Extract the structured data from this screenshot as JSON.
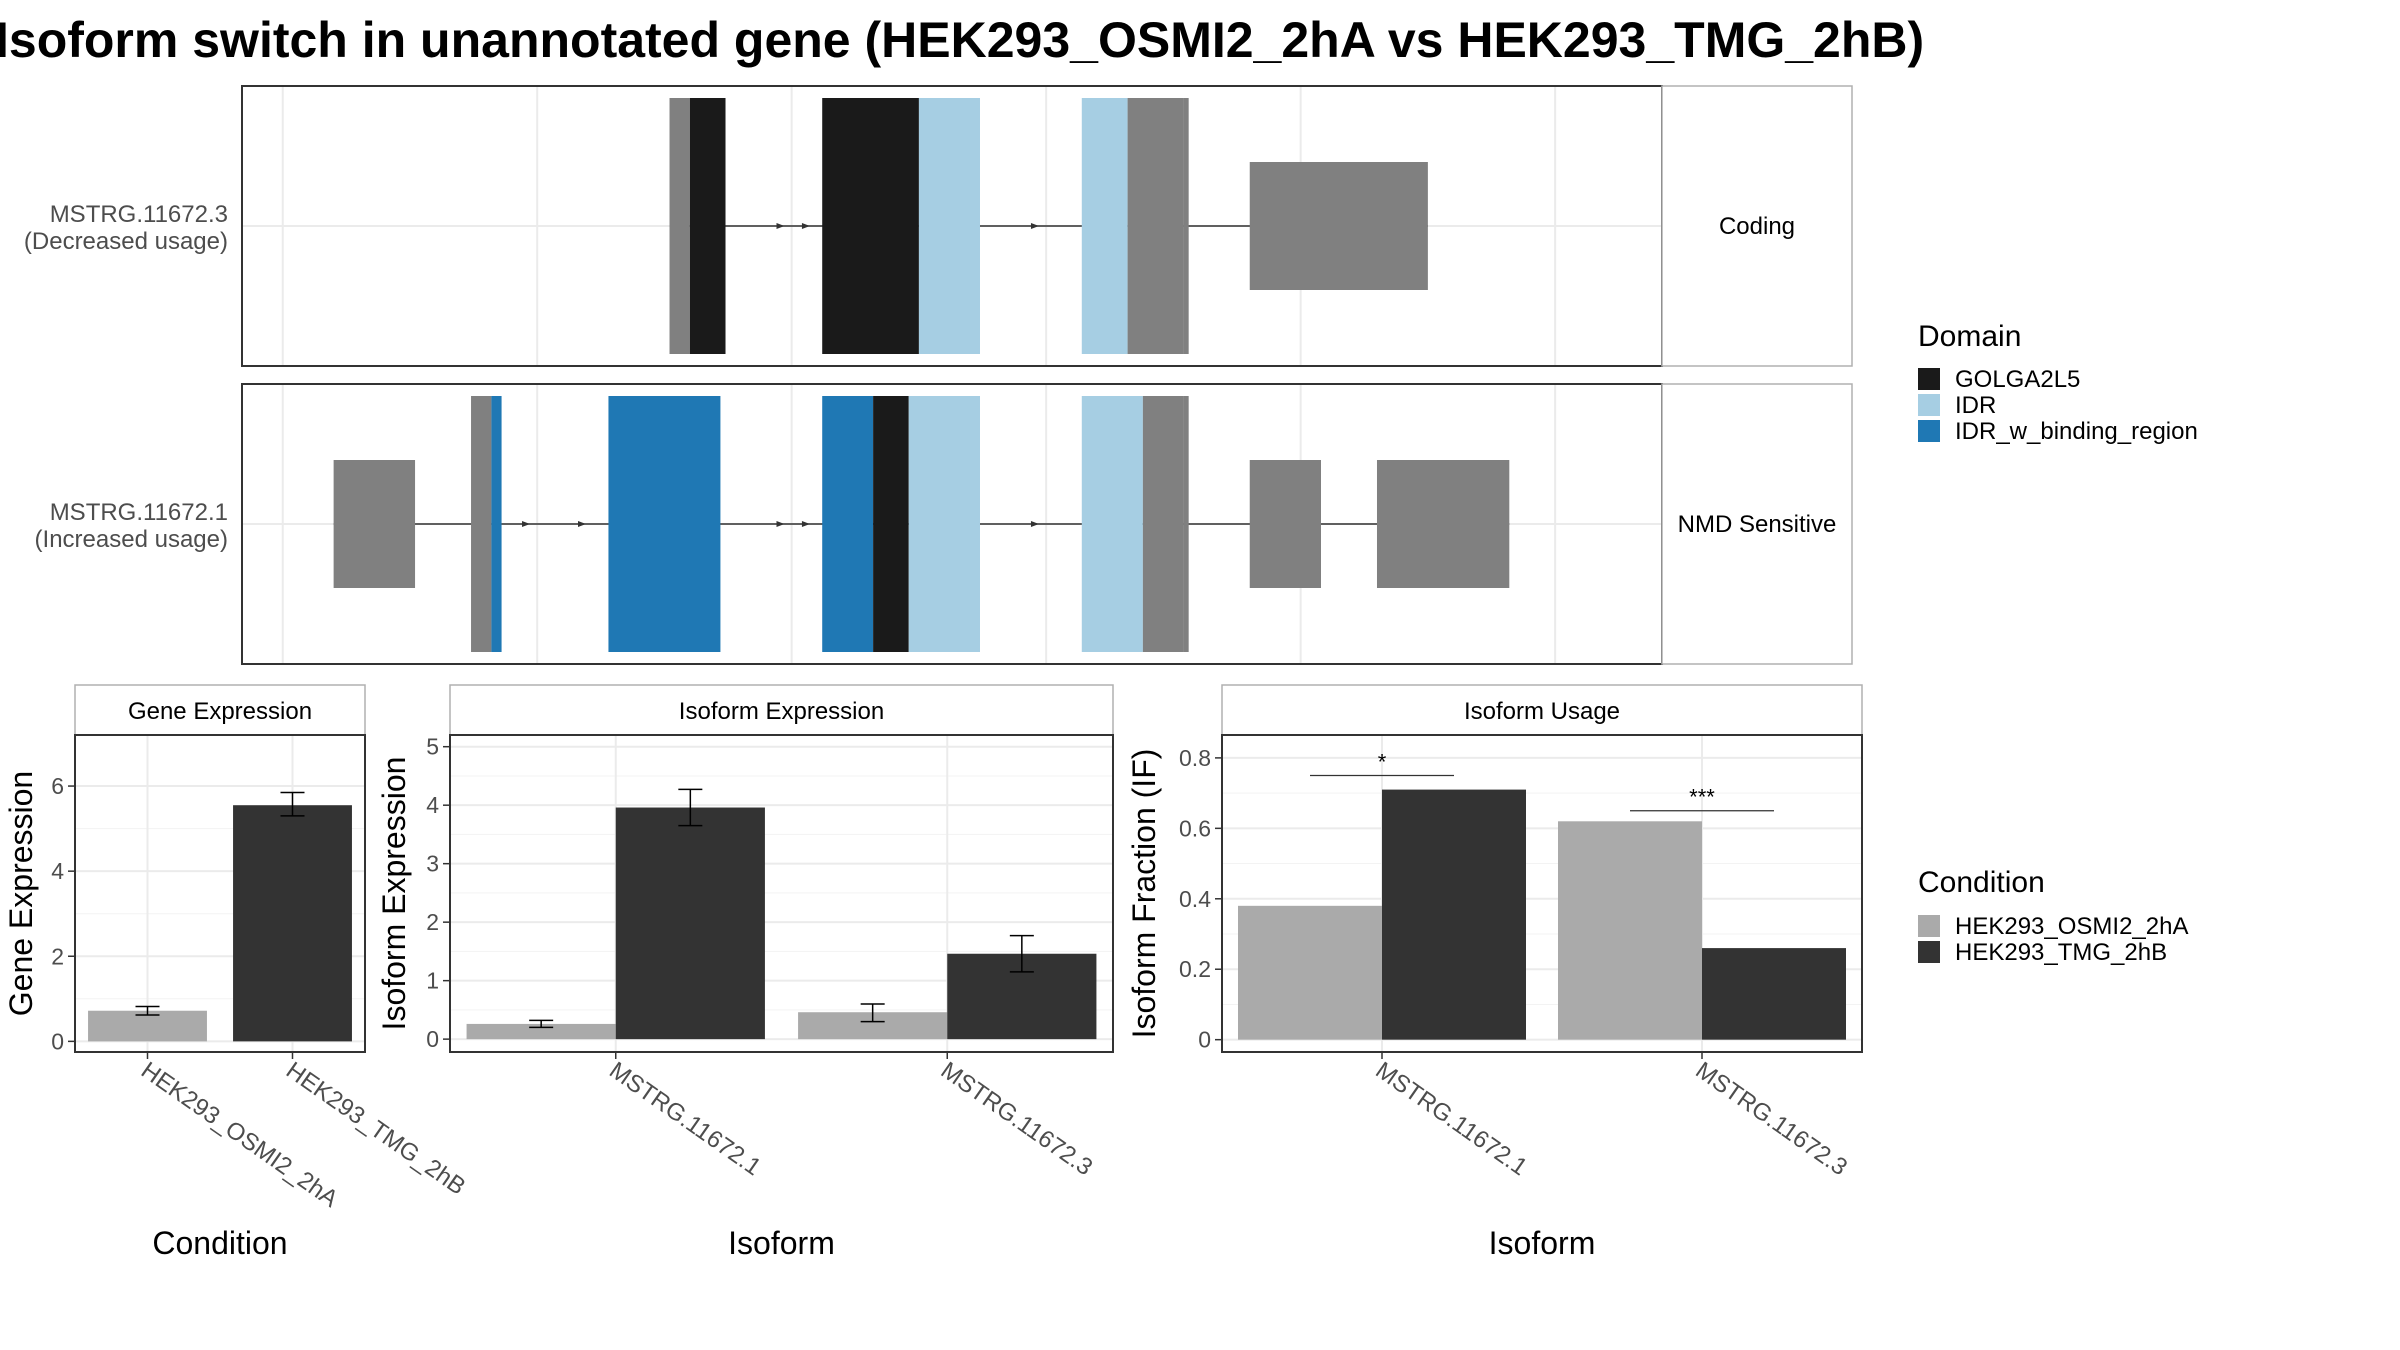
{
  "title": "Isoform switch in unannotated gene (HEK293_OSMI2_2hA vs HEK293_TMG_2hB)",
  "colors": {
    "utr": "#808080",
    "golga": "#1a1a1a",
    "idr": "#a6cee3",
    "idr_bind": "#1f78b4",
    "cond_a": "#aaaaaa",
    "cond_b": "#333333",
    "grid": "#ebebeb",
    "panel_border": "#333333",
    "strip_border": "#b0b0b0"
  },
  "transcripts": [
    {
      "name": "MSTRG.11672.3",
      "usage": "(Decreased usage)",
      "class": "Coding",
      "noncoding": [
        [
          0.0,
          0.26
        ],
        [
          0.26,
          0.36
        ],
        [
          0.69,
          0.8
        ],
        [
          1.06,
          1.41
        ]
      ],
      "coding_segments": [
        [
          0.26,
          0.3,
          "utr"
        ],
        [
          0.3,
          0.37,
          "golga"
        ],
        [
          0.56,
          0.75,
          "golga"
        ],
        [
          0.75,
          0.87,
          "idr"
        ],
        [
          1.07,
          1.16,
          "idr"
        ],
        [
          1.16,
          1.27,
          "utr"
        ],
        [
          1.27,
          1.28,
          "utr"
        ]
      ],
      "utr_blocks": [
        [
          1.4,
          1.75
        ]
      ],
      "arrows": [
        0.48,
        0.53,
        0.98
      ]
    },
    {
      "name": "MSTRG.11672.1",
      "usage": "(Increased usage)",
      "class": "NMD Sensitive",
      "noncoding": [
        [
          -0.4,
          -0.28
        ],
        [
          0.0,
          0.0
        ],
        [
          1.4,
          1.46
        ]
      ],
      "coding_segments": [
        [
          -0.13,
          -0.09,
          "utr"
        ],
        [
          -0.09,
          -0.07,
          "idr_bind"
        ],
        [
          0.14,
          0.36,
          "idr_bind"
        ],
        [
          0.56,
          0.66,
          "idr_bind"
        ],
        [
          0.66,
          0.73,
          "golga"
        ],
        [
          0.73,
          0.87,
          "idr"
        ],
        [
          1.07,
          1.19,
          "idr"
        ],
        [
          1.19,
          1.27,
          "utr"
        ],
        [
          1.27,
          1.28,
          "utr"
        ]
      ],
      "utr_blocks": [
        [
          -0.4,
          -0.24
        ],
        [
          1.4,
          1.54
        ],
        [
          1.65,
          1.91
        ]
      ],
      "arrows": [
        -0.02,
        0.09,
        0.48,
        0.53,
        0.98
      ]
    }
  ],
  "domain_legend": {
    "title": "Domain",
    "items": [
      {
        "label": "GOLGA2L5",
        "color": "#1a1a1a"
      },
      {
        "label": "IDR",
        "color": "#a6cee3"
      },
      {
        "label": "IDR_w_binding_region",
        "color": "#1f78b4"
      }
    ]
  },
  "condition_legend": {
    "title": "Condition",
    "items": [
      {
        "label": "HEK293_OSMI2_2hA",
        "color": "#aaaaaa"
      },
      {
        "label": "HEK293_TMG_2hB",
        "color": "#333333"
      }
    ]
  },
  "chart_data": [
    {
      "type": "bar",
      "title": "Gene Expression",
      "xlabel": "Condition",
      "ylabel": "Gene Expression",
      "ylim": [
        -0.25,
        7.2
      ],
      "yticks": [
        0,
        2,
        4,
        6
      ],
      "categories": [
        "HEK293_OSMI2_2hA",
        "HEK293_TMG_2hB"
      ],
      "values": [
        0.72,
        5.55
      ],
      "errors": [
        [
          0.62,
          0.82
        ],
        [
          5.3,
          5.85
        ]
      ],
      "colors": [
        "#aaaaaa",
        "#333333"
      ]
    },
    {
      "type": "bar",
      "title": "Isoform Expression",
      "xlabel": "Isoform",
      "ylabel": "Isoform Expression",
      "ylim": [
        -0.22,
        5.2
      ],
      "yticks": [
        0,
        1,
        2,
        3,
        4,
        5
      ],
      "categories": [
        "MSTRG.11672.1",
        "MSTRG.11672.3"
      ],
      "series": [
        {
          "name": "HEK293_OSMI2_2hA",
          "values": [
            0.26,
            0.46
          ],
          "errors": [
            [
              0.2,
              0.32
            ],
            [
              0.3,
              0.6
            ]
          ]
        },
        {
          "name": "HEK293_TMG_2hB",
          "values": [
            3.96,
            1.46
          ],
          "errors": [
            [
              3.65,
              4.27
            ],
            [
              1.15,
              1.77
            ]
          ]
        }
      ]
    },
    {
      "type": "bar",
      "title": "Isoform Usage",
      "xlabel": "Isoform",
      "ylabel": "Isoform Fraction (IF)",
      "ylim": [
        -0.035,
        0.865
      ],
      "yticks": [
        0.0,
        0.2,
        0.4,
        0.6,
        0.8
      ],
      "categories": [
        "MSTRG.11672.1",
        "MSTRG.11672.3"
      ],
      "series": [
        {
          "name": "HEK293_OSMI2_2hA",
          "values": [
            0.38,
            0.62
          ]
        },
        {
          "name": "HEK293_TMG_2hB",
          "values": [
            0.71,
            0.26
          ]
        }
      ],
      "significance": [
        {
          "label": "*",
          "y": 0.75
        },
        {
          "label": "***",
          "y": 0.65
        }
      ]
    }
  ]
}
